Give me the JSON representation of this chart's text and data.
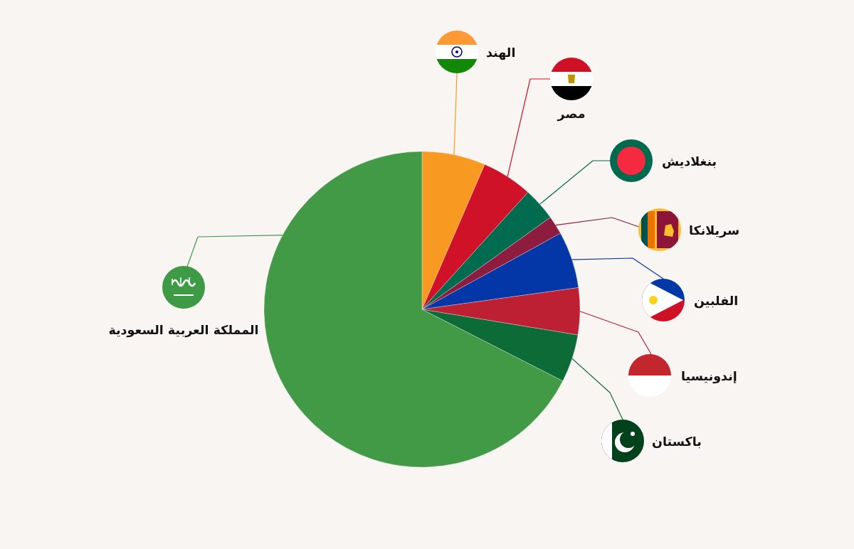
{
  "chart_data": {
    "type": "pie",
    "categories": [
      "الهند",
      "مصر",
      "بنغلاديش",
      "سريلانكا",
      "الفلبين",
      "إندونيسيا",
      "باكستان",
      "المملكة العربية السعودية"
    ],
    "values": [
      6.5,
      5.2,
      3.4,
      1.9,
      5.8,
      4.8,
      4.9,
      67.5
    ],
    "colors": [
      "#f89a22",
      "#cf1228",
      "#006b4f",
      "#8e1c3f",
      "#0337a7",
      "#bd1f33",
      "#0d6b37",
      "#429a47"
    ]
  }
}
